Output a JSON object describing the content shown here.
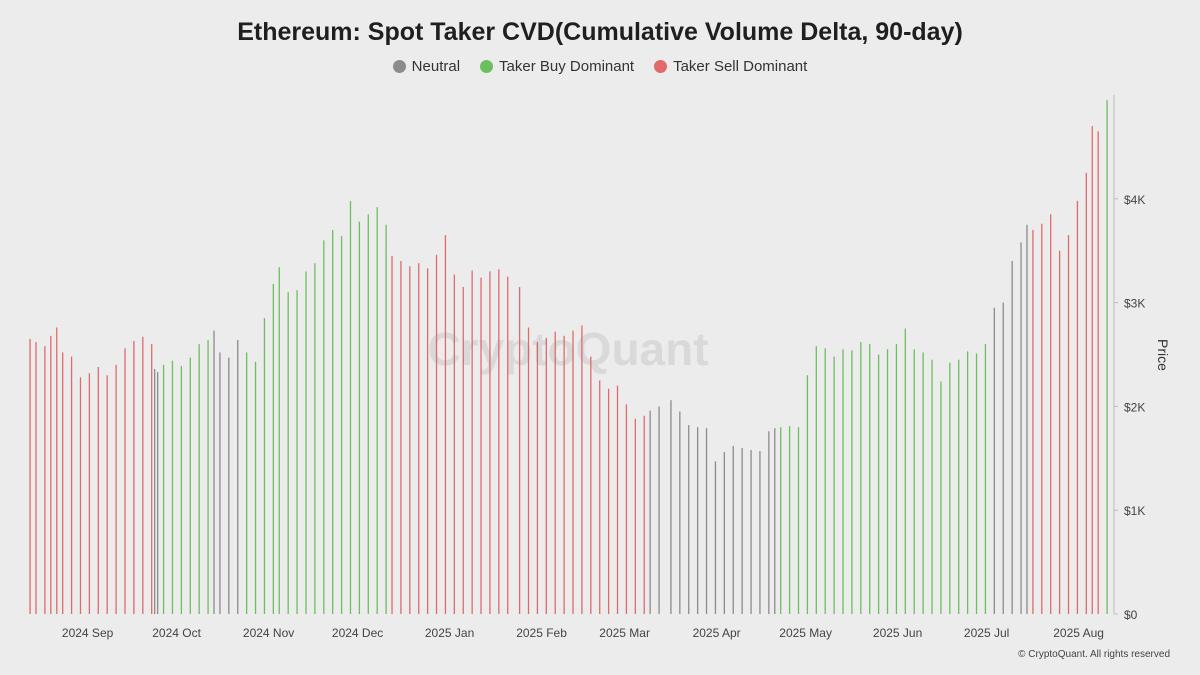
{
  "chart_data": {
    "type": "bar",
    "title": "Ethereum: Spot Taker CVD(Cumulative Volume Delta, 90-day)",
    "legend": [
      {
        "name": "Neutral",
        "color": "#8c8c8c"
      },
      {
        "name": "Taker Buy Dominant",
        "color": "#6cbf5f"
      },
      {
        "name": "Taker Sell Dominant",
        "color": "#e06a6a"
      }
    ],
    "ylabel": "Price",
    "ylim": [
      0,
      5000
    ],
    "yticks": [
      {
        "value": 0,
        "label": "$0"
      },
      {
        "value": 1000,
        "label": "$1K"
      },
      {
        "value": 2000,
        "label": "$2K"
      },
      {
        "value": 3000,
        "label": "$3K"
      },
      {
        "value": 4000,
        "label": "$4K"
      }
    ],
    "x_start": "2024-08-20",
    "x_end": "2025-08-19",
    "xticks": [
      {
        "date": "2024-09-01",
        "label": "2024 Sep"
      },
      {
        "date": "2024-10-01",
        "label": "2024 Oct"
      },
      {
        "date": "2024-11-01",
        "label": "2024 Nov"
      },
      {
        "date": "2024-12-01",
        "label": "2024 Dec"
      },
      {
        "date": "2025-01-01",
        "label": "2025 Jan"
      },
      {
        "date": "2025-02-01",
        "label": "2025 Feb"
      },
      {
        "date": "2025-03-01",
        "label": "2025 Mar"
      },
      {
        "date": "2025-04-01",
        "label": "2025 Apr"
      },
      {
        "date": "2025-05-01",
        "label": "2025 May"
      },
      {
        "date": "2025-06-01",
        "label": "2025 Jun"
      },
      {
        "date": "2025-07-01",
        "label": "2025 Jul"
      },
      {
        "date": "2025-08-01",
        "label": "2025 Aug"
      }
    ],
    "series": [
      {
        "name": "Taker Sell Dominant",
        "color": "#e06a6a",
        "points": [
          [
            "2024-08-20",
            2650
          ],
          [
            "2024-08-22",
            2620
          ],
          [
            "2024-08-25",
            2580
          ],
          [
            "2024-08-27",
            2680
          ],
          [
            "2024-08-29",
            2760
          ],
          [
            "2024-08-31",
            2520
          ],
          [
            "2024-09-03",
            2480
          ],
          [
            "2024-09-06",
            2280
          ],
          [
            "2024-09-09",
            2320
          ],
          [
            "2024-09-12",
            2380
          ],
          [
            "2024-09-15",
            2300
          ],
          [
            "2024-09-18",
            2400
          ],
          [
            "2024-09-21",
            2560
          ],
          [
            "2024-09-24",
            2630
          ],
          [
            "2024-09-27",
            2670
          ],
          [
            "2024-09-30",
            2600
          ]
        ]
      },
      {
        "name": "Neutral",
        "color": "#8c8c8c",
        "points": [
          [
            "2024-10-01",
            2360
          ],
          [
            "2024-10-02",
            2330
          ]
        ]
      },
      {
        "name": "Taker Buy Dominant",
        "color": "#6cbf5f",
        "points": [
          [
            "2024-10-04",
            2400
          ],
          [
            "2024-10-07",
            2440
          ],
          [
            "2024-10-10",
            2390
          ],
          [
            "2024-10-13",
            2470
          ],
          [
            "2024-10-16",
            2600
          ],
          [
            "2024-10-19",
            2640
          ]
        ]
      },
      {
        "name": "Neutral",
        "color": "#8c8c8c",
        "points": [
          [
            "2024-10-21",
            2730
          ],
          [
            "2024-10-23",
            2520
          ],
          [
            "2024-10-26",
            2470
          ],
          [
            "2024-10-29",
            2640
          ]
        ]
      },
      {
        "name": "Taker Buy Dominant",
        "color": "#6cbf5f",
        "points": [
          [
            "2024-11-01",
            2520
          ],
          [
            "2024-11-04",
            2430
          ],
          [
            "2024-11-07",
            2850
          ],
          [
            "2024-11-10",
            3180
          ],
          [
            "2024-11-12",
            3340
          ],
          [
            "2024-11-15",
            3100
          ],
          [
            "2024-11-18",
            3120
          ],
          [
            "2024-11-21",
            3300
          ],
          [
            "2024-11-24",
            3380
          ],
          [
            "2024-11-27",
            3600
          ],
          [
            "2024-11-30",
            3700
          ],
          [
            "2024-12-03",
            3640
          ],
          [
            "2024-12-06",
            3980
          ],
          [
            "2024-12-09",
            3780
          ],
          [
            "2024-12-12",
            3850
          ],
          [
            "2024-12-15",
            3920
          ],
          [
            "2024-12-18",
            3750
          ]
        ]
      },
      {
        "name": "Taker Sell Dominant",
        "color": "#e06a6a",
        "points": [
          [
            "2024-12-20",
            3450
          ],
          [
            "2024-12-23",
            3400
          ],
          [
            "2024-12-26",
            3350
          ],
          [
            "2024-12-29",
            3380
          ],
          [
            "2025-01-01",
            3330
          ],
          [
            "2025-01-04",
            3460
          ],
          [
            "2025-01-07",
            3650
          ],
          [
            "2025-01-10",
            3270
          ],
          [
            "2025-01-13",
            3150
          ],
          [
            "2025-01-16",
            3310
          ],
          [
            "2025-01-19",
            3240
          ],
          [
            "2025-01-22",
            3300
          ],
          [
            "2025-01-25",
            3320
          ],
          [
            "2025-01-28",
            3250
          ],
          [
            "2025-02-01",
            3150
          ],
          [
            "2025-02-04",
            2760
          ],
          [
            "2025-02-07",
            2620
          ],
          [
            "2025-02-10",
            2660
          ],
          [
            "2025-02-13",
            2720
          ],
          [
            "2025-02-16",
            2680
          ],
          [
            "2025-02-19",
            2730
          ],
          [
            "2025-02-22",
            2780
          ],
          [
            "2025-02-25",
            2480
          ],
          [
            "2025-02-28",
            2250
          ],
          [
            "2025-03-03",
            2170
          ],
          [
            "2025-03-06",
            2200
          ],
          [
            "2025-03-09",
            2020
          ],
          [
            "2025-03-12",
            1880
          ],
          [
            "2025-03-15",
            1910
          ]
        ]
      },
      {
        "name": "Neutral",
        "color": "#8c8c8c",
        "points": [
          [
            "2025-03-17",
            1960
          ],
          [
            "2025-03-20",
            2000
          ],
          [
            "2025-03-24",
            2060
          ],
          [
            "2025-03-27",
            1950
          ],
          [
            "2025-03-30",
            1820
          ],
          [
            "2025-04-02",
            1800
          ],
          [
            "2025-04-05",
            1790
          ],
          [
            "2025-04-08",
            1470
          ],
          [
            "2025-04-11",
            1560
          ],
          [
            "2025-04-14",
            1620
          ],
          [
            "2025-04-17",
            1600
          ],
          [
            "2025-04-20",
            1580
          ],
          [
            "2025-04-23",
            1570
          ],
          [
            "2025-04-26",
            1760
          ],
          [
            "2025-04-28",
            1790
          ]
        ]
      },
      {
        "name": "Taker Buy Dominant",
        "color": "#6cbf5f",
        "points": [
          [
            "2025-04-30",
            1800
          ],
          [
            "2025-05-03",
            1810
          ],
          [
            "2025-05-06",
            1800
          ],
          [
            "2025-05-09",
            2300
          ],
          [
            "2025-05-12",
            2580
          ],
          [
            "2025-05-15",
            2560
          ],
          [
            "2025-05-18",
            2480
          ],
          [
            "2025-05-21",
            2550
          ],
          [
            "2025-05-24",
            2540
          ],
          [
            "2025-05-27",
            2620
          ],
          [
            "2025-05-30",
            2600
          ],
          [
            "2025-06-02",
            2500
          ],
          [
            "2025-06-05",
            2550
          ],
          [
            "2025-06-08",
            2600
          ],
          [
            "2025-06-11",
            2750
          ],
          [
            "2025-06-14",
            2550
          ],
          [
            "2025-06-17",
            2520
          ],
          [
            "2025-06-20",
            2450
          ],
          [
            "2025-06-23",
            2240
          ],
          [
            "2025-06-26",
            2420
          ],
          [
            "2025-06-29",
            2450
          ],
          [
            "2025-07-02",
            2530
          ],
          [
            "2025-07-05",
            2510
          ],
          [
            "2025-07-08",
            2600
          ]
        ]
      },
      {
        "name": "Neutral",
        "color": "#8c8c8c",
        "points": [
          [
            "2025-07-11",
            2950
          ],
          [
            "2025-07-14",
            3000
          ],
          [
            "2025-07-17",
            3400
          ],
          [
            "2025-07-20",
            3580
          ],
          [
            "2025-07-22",
            3750
          ]
        ]
      },
      {
        "name": "Taker Sell Dominant",
        "color": "#e06a6a",
        "points": [
          [
            "2025-07-24",
            3700
          ],
          [
            "2025-07-27",
            3760
          ],
          [
            "2025-07-30",
            3850
          ],
          [
            "2025-08-02",
            3500
          ],
          [
            "2025-08-05",
            3650
          ],
          [
            "2025-08-08",
            3980
          ],
          [
            "2025-08-11",
            4250
          ],
          [
            "2025-08-13",
            4700
          ],
          [
            "2025-08-15",
            4650
          ]
        ]
      },
      {
        "name": "Taker Buy Dominant",
        "color": "#6cbf5f",
        "points": [
          [
            "2025-08-18",
            4950
          ]
        ]
      }
    ]
  },
  "watermark": "CryptoQuant",
  "copyright": "© CryptoQuant. All rights reserved"
}
